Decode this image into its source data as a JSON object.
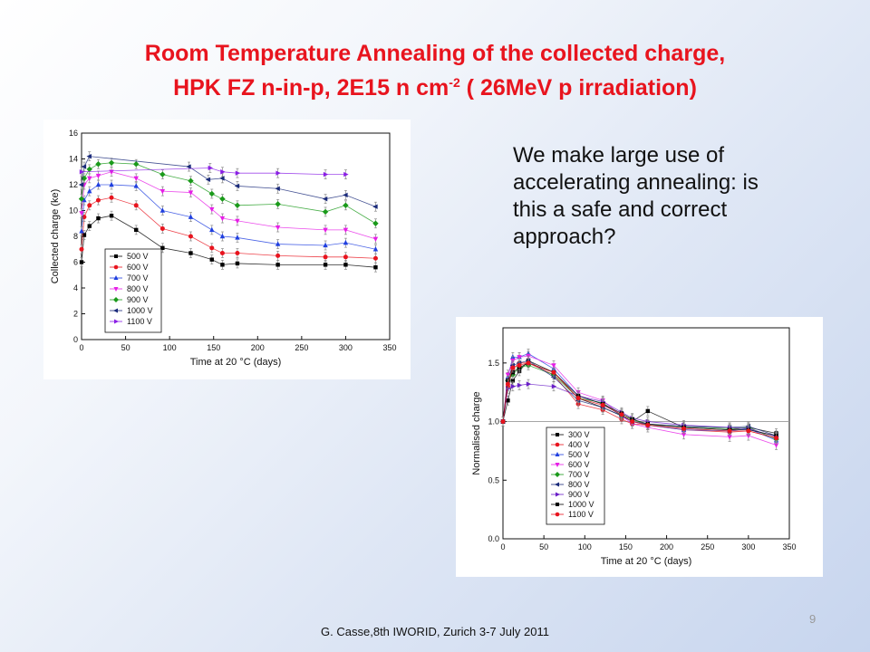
{
  "slide": {
    "title_line1": "Room Temperature Annealing of the collected charge,",
    "title_line2_a": "HPK FZ n-in-p, 2E15 n cm",
    "title_line2_sup": "-2",
    "title_line2_b": " ( 26MeV p irradiation)",
    "note_text": "We make large use of accelerating annealing: is this a safe and correct approach?",
    "footer": "G. Casse,8th IWORID, Zurich 3-7 July 2011",
    "page_number": "9"
  },
  "chart_data": [
    {
      "type": "line",
      "xlabel": "Time at 20 °C (days)",
      "ylabel": "Collected charge (ke)",
      "xlim": [
        0,
        350
      ],
      "ylim": [
        0,
        16
      ],
      "xticks": [
        0,
        50,
        100,
        150,
        200,
        250,
        300,
        350
      ],
      "yticks": [
        0,
        2,
        4,
        6,
        8,
        10,
        12,
        14,
        16
      ],
      "legend_position": "bottom-left",
      "series": [
        {
          "name": "500 V",
          "color": "#000000",
          "marker": "square",
          "x": [
            0,
            3,
            9,
            19,
            34,
            62,
            92,
            124,
            148,
            160,
            177,
            223,
            277,
            300,
            334
          ],
          "y": [
            6.0,
            8.1,
            8.8,
            9.4,
            9.6,
            8.5,
            7.1,
            6.7,
            6.2,
            5.8,
            5.9,
            5.8,
            5.8,
            5.8,
            5.6
          ]
        },
        {
          "name": "600 V",
          "color": "#e8141e",
          "marker": "circle",
          "x": [
            0,
            3,
            9,
            19,
            34,
            62,
            92,
            124,
            148,
            160,
            177,
            223,
            277,
            300,
            334
          ],
          "y": [
            7.0,
            9.5,
            10.4,
            10.8,
            11.0,
            10.4,
            8.6,
            8.0,
            7.1,
            6.7,
            6.7,
            6.5,
            6.4,
            6.4,
            6.3
          ]
        },
        {
          "name": "700 V",
          "color": "#1f3fe0",
          "marker": "triangle-up",
          "x": [
            0,
            3,
            9,
            19,
            34,
            62,
            92,
            124,
            148,
            160,
            177,
            223,
            277,
            300,
            334
          ],
          "y": [
            8.4,
            10.8,
            11.5,
            12.0,
            12.0,
            11.9,
            10.0,
            9.5,
            8.5,
            8.0,
            7.9,
            7.4,
            7.3,
            7.5,
            7.0
          ]
        },
        {
          "name": "800 V",
          "color": "#e61ee6",
          "marker": "triangle-down",
          "x": [
            0,
            3,
            9,
            19,
            34,
            62,
            92,
            124,
            148,
            160,
            177,
            223,
            277,
            300,
            334
          ],
          "y": [
            9.8,
            12.0,
            12.5,
            12.7,
            13.0,
            12.5,
            11.5,
            11.4,
            10.1,
            9.4,
            9.2,
            8.7,
            8.5,
            8.5,
            7.8
          ]
        },
        {
          "name": "900 V",
          "color": "#1a9a1a",
          "marker": "diamond",
          "x": [
            0,
            3,
            9,
            19,
            34,
            62,
            92,
            124,
            148,
            160,
            177,
            223,
            277,
            300,
            334
          ],
          "y": [
            10.9,
            12.5,
            13.2,
            13.6,
            13.7,
            13.6,
            12.8,
            12.3,
            11.3,
            10.9,
            10.4,
            10.5,
            9.9,
            10.4,
            9.0
          ]
        },
        {
          "name": "1000 V",
          "color": "#1a2a7a",
          "marker": "triangle-left",
          "x": [
            0,
            3,
            9,
            122,
            144,
            160,
            177,
            223,
            277,
            300,
            334
          ],
          "y": [
            12.0,
            13.4,
            14.2,
            13.4,
            12.4,
            12.5,
            11.9,
            11.7,
            10.9,
            11.2,
            10.3
          ]
        },
        {
          "name": "1100 V",
          "color": "#8a1ee6",
          "marker": "triangle-right",
          "x": [
            0,
            146,
            160,
            177,
            223,
            277,
            300
          ],
          "y": [
            13.0,
            13.3,
            13.0,
            12.9,
            12.9,
            12.8,
            12.8
          ]
        }
      ]
    },
    {
      "type": "line",
      "xlabel": "Time at 20 °C (days)",
      "ylabel": "Normalised charge",
      "xlim": [
        0,
        350
      ],
      "ylim": [
        0,
        1.8
      ],
      "xticks": [
        0,
        50,
        100,
        150,
        200,
        250,
        300,
        350
      ],
      "yticks": [
        0.0,
        0.5,
        1.0,
        1.5
      ],
      "reference_line": 1.0,
      "legend_position": "bottom-left",
      "series": [
        {
          "name": "300 V",
          "color": "#000000",
          "marker": "square",
          "x": [
            0,
            6,
            12,
            20,
            31,
            62,
            92,
            122,
            145,
            158,
            177,
            221,
            277,
            300,
            334
          ],
          "y": [
            1.0,
            1.18,
            1.35,
            1.43,
            1.52,
            1.42,
            1.2,
            1.12,
            1.05,
            1.0,
            1.09,
            0.95,
            0.93,
            0.95,
            0.9
          ]
        },
        {
          "name": "400 V",
          "color": "#e8141e",
          "marker": "circle",
          "x": [
            0,
            6,
            12,
            20,
            31,
            62,
            92,
            122,
            145,
            158,
            177,
            221,
            277,
            300,
            334
          ],
          "y": [
            1.0,
            1.3,
            1.45,
            1.5,
            1.5,
            1.4,
            1.15,
            1.1,
            1.02,
            0.98,
            0.97,
            0.93,
            0.91,
            0.92,
            0.86
          ]
        },
        {
          "name": "500 V",
          "color": "#1f3fe0",
          "marker": "triangle-up",
          "x": [
            0,
            6,
            12,
            20,
            31,
            62,
            92,
            122,
            145,
            158,
            177,
            221,
            277,
            300,
            334
          ],
          "y": [
            1.0,
            1.38,
            1.55,
            1.55,
            1.58,
            1.45,
            1.22,
            1.15,
            1.05,
            1.0,
            0.97,
            0.93,
            0.92,
            0.94,
            0.84
          ]
        },
        {
          "name": "600 V",
          "color": "#e61ee6",
          "marker": "triangle-down",
          "x": [
            0,
            6,
            12,
            20,
            31,
            62,
            92,
            122,
            145,
            158,
            177,
            221,
            277,
            300,
            334
          ],
          "y": [
            1.0,
            1.4,
            1.52,
            1.55,
            1.56,
            1.48,
            1.25,
            1.18,
            1.05,
            0.98,
            0.95,
            0.89,
            0.87,
            0.88,
            0.8
          ]
        },
        {
          "name": "700 V",
          "color": "#1a9a1a",
          "marker": "diamond",
          "x": [
            0,
            6,
            12,
            20,
            31,
            62,
            92,
            122,
            145,
            158,
            177,
            221,
            277,
            300,
            334
          ],
          "y": [
            1.0,
            1.35,
            1.4,
            1.46,
            1.48,
            1.4,
            1.2,
            1.16,
            1.05,
            1.02,
            0.97,
            0.96,
            0.94,
            0.95,
            0.85
          ]
        },
        {
          "name": "800 V",
          "color": "#1a2a7a",
          "marker": "triangle-left",
          "x": [
            0,
            6,
            12,
            20,
            31,
            62,
            92,
            122,
            145,
            158,
            177,
            221,
            277,
            300,
            334
          ],
          "y": [
            1.0,
            1.35,
            1.48,
            1.5,
            1.52,
            1.38,
            1.18,
            1.12,
            1.05,
            1.0,
            0.98,
            0.96,
            0.95,
            0.96,
            0.88
          ]
        },
        {
          "name": "900 V",
          "color": "#6a1ec8",
          "marker": "triangle-right",
          "x": [
            0,
            6,
            12,
            20,
            31,
            62,
            92,
            122,
            145,
            158,
            177,
            221,
            277,
            300,
            334
          ],
          "y": [
            1.0,
            1.28,
            1.3,
            1.31,
            1.32,
            1.3,
            1.22,
            1.17,
            1.08,
            1.03,
            1.0,
            0.97,
            0.95,
            0.94,
            0.87
          ]
        },
        {
          "name": "1000 V",
          "color": "#000000",
          "marker": "square",
          "x": [
            0,
            6,
            12,
            20,
            31,
            62,
            92,
            122,
            145,
            158,
            177,
            221,
            277,
            300,
            334
          ],
          "y": [
            1.0,
            1.35,
            1.42,
            1.46,
            1.5,
            1.42,
            1.22,
            1.15,
            1.07,
            1.02,
            0.98,
            0.95,
            0.93,
            0.93,
            0.88
          ]
        },
        {
          "name": "1100 V",
          "color": "#e8141e",
          "marker": "circle",
          "x": [
            0,
            6,
            12,
            20,
            31,
            62,
            92,
            122,
            145,
            158,
            177,
            221,
            277,
            300,
            334
          ],
          "y": [
            1.0,
            1.32,
            1.46,
            1.48,
            1.5,
            1.42,
            1.2,
            1.14,
            1.06,
            1.0,
            0.97,
            0.94,
            0.92,
            0.92,
            0.86
          ]
        }
      ]
    }
  ]
}
